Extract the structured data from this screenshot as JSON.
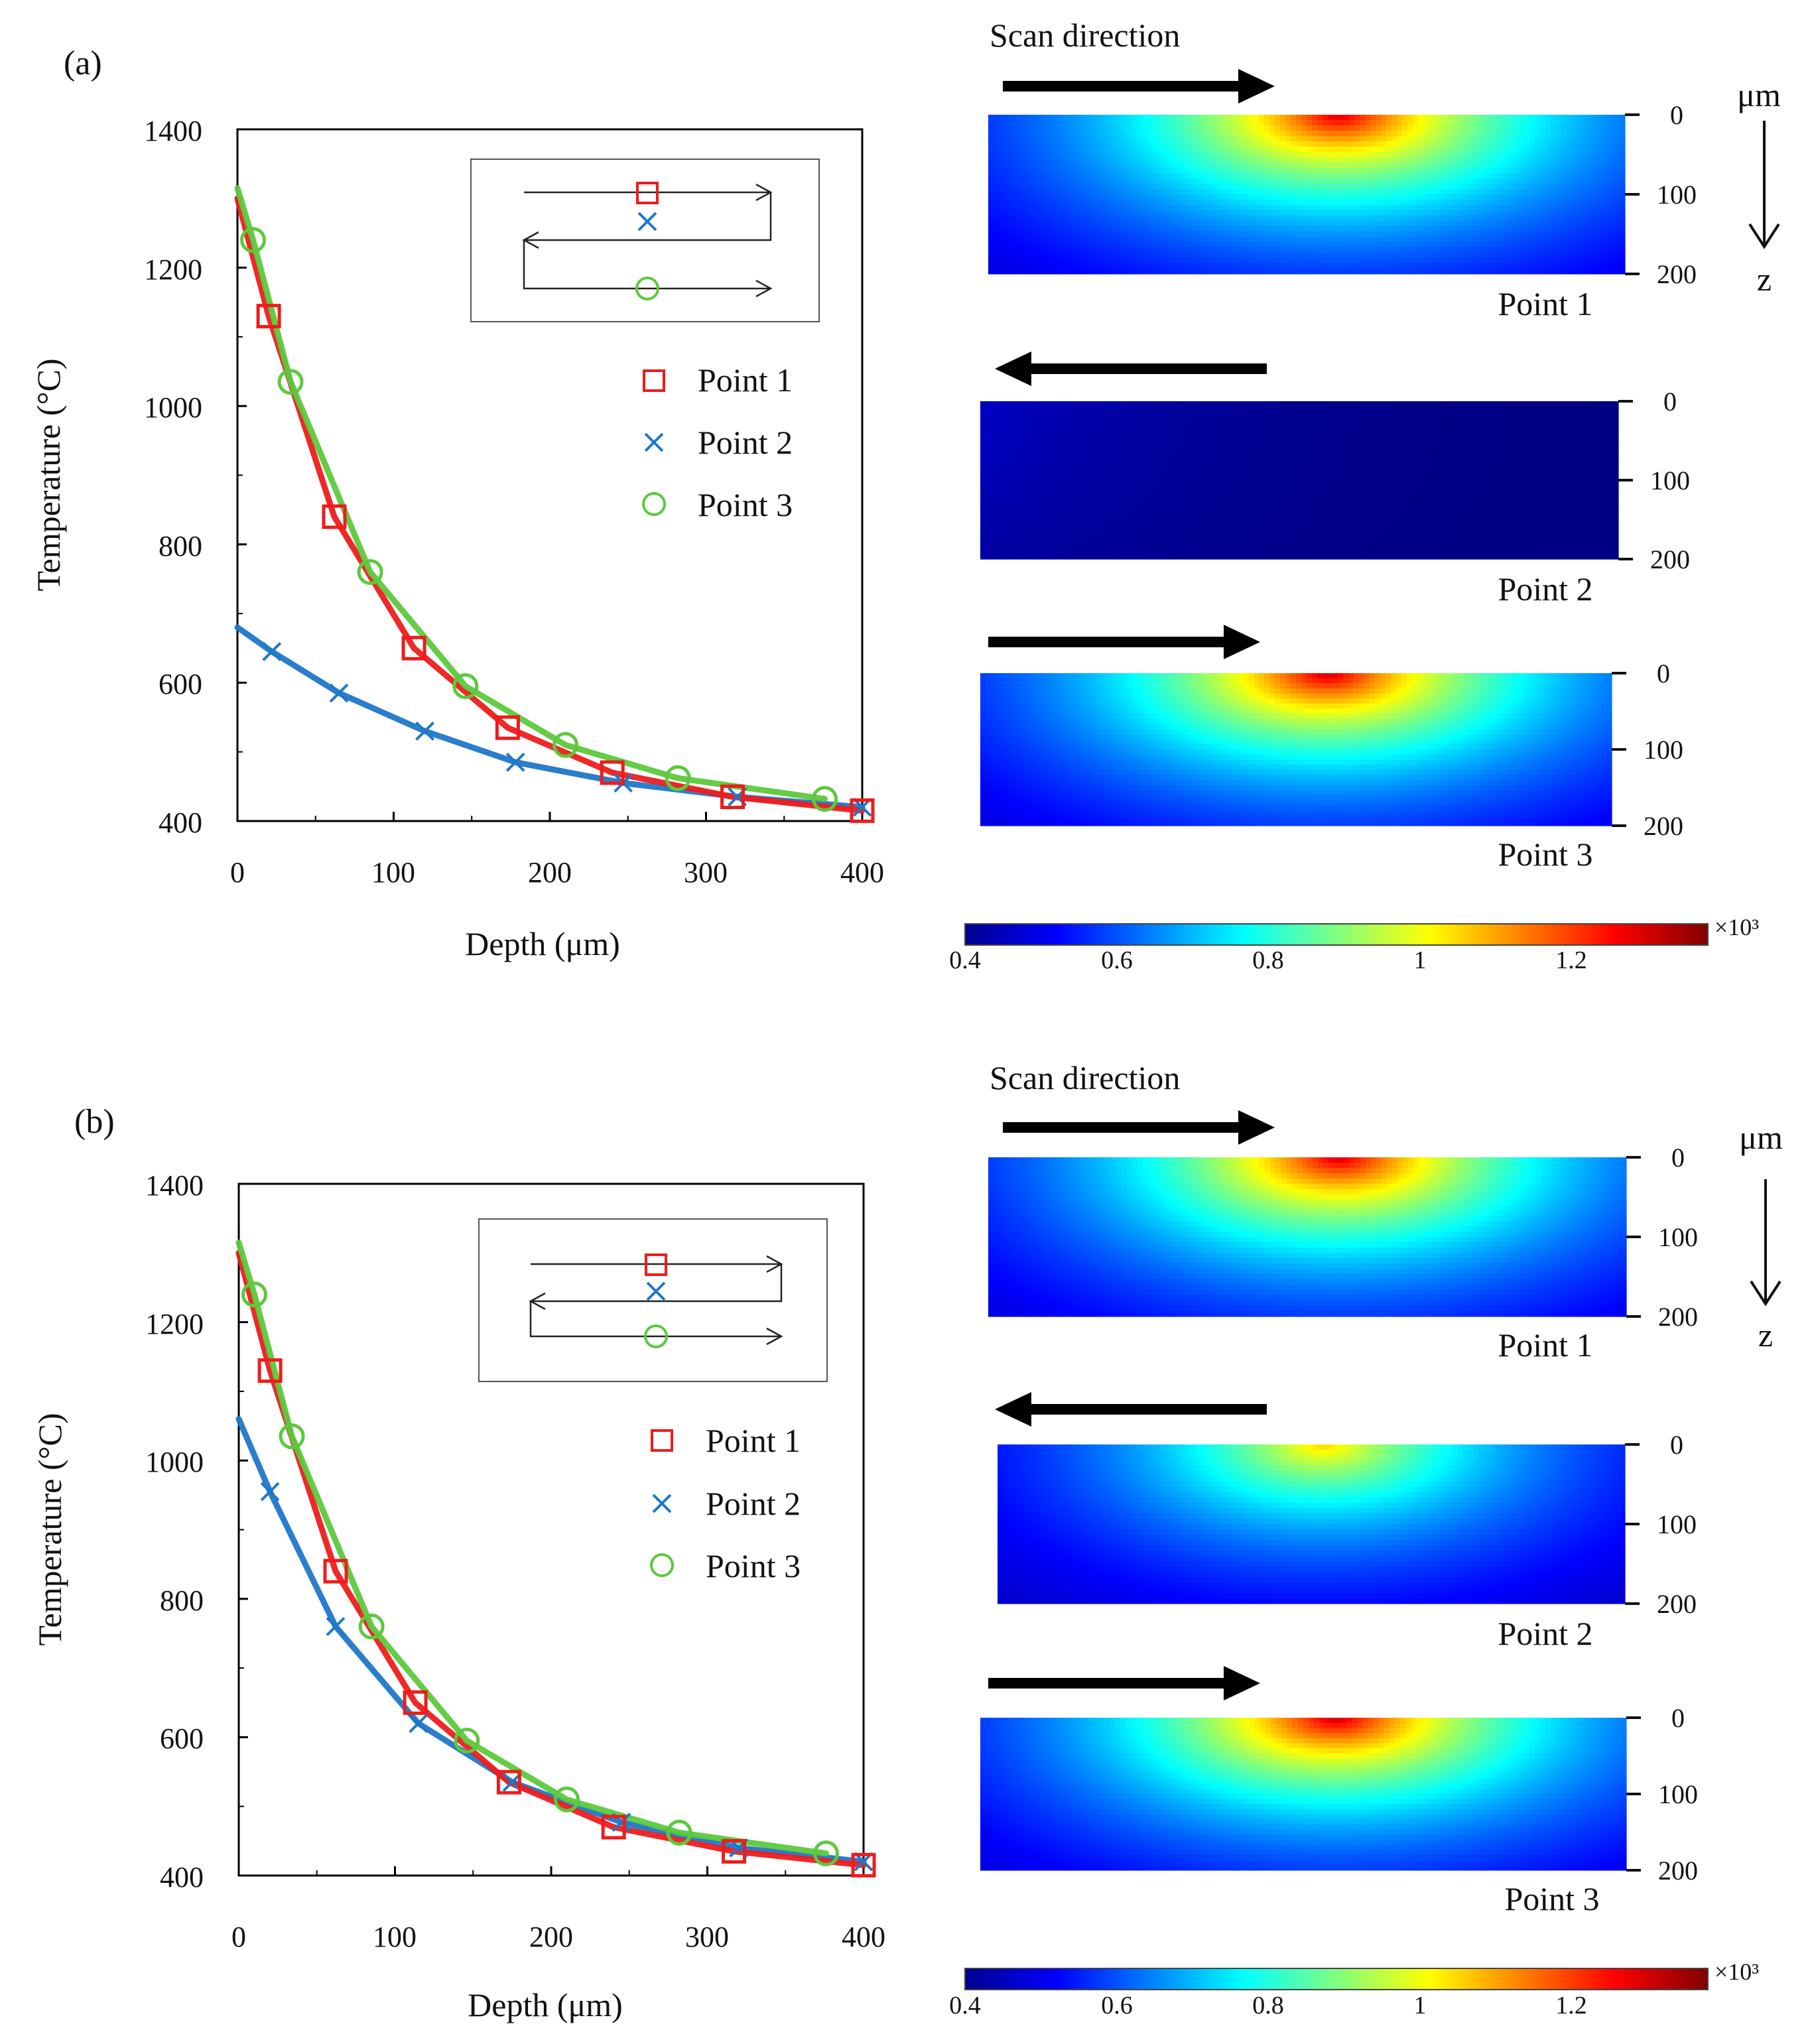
{
  "panels": [
    {
      "label": "(a)",
      "xlabel": "Depth (μm)",
      "ylabel": "Temperature (°C)",
      "xticks": [
        "0",
        "100",
        "200",
        "300",
        "400"
      ],
      "yticks": [
        "400",
        "600",
        "800",
        "1000",
        "1200",
        "1400"
      ],
      "scan_title": "Scan direction",
      "depth_unit": "μm",
      "depth_axis": "z",
      "depth_ticks": [
        "0",
        "100",
        "200"
      ],
      "maps": [
        {
          "label": "Point 1",
          "scan": "right",
          "peak_temp": 1300,
          "peak_pos": 0.55
        },
        {
          "label": "Point 2",
          "scan": "left",
          "peak_temp": 680,
          "peak_pos": -0.5
        },
        {
          "label": "Point 3",
          "scan": "right",
          "peak_temp": 1310,
          "peak_pos": 0.55
        }
      ],
      "colorbar": {
        "ticks": [
          "0.4",
          "0.6",
          "0.8",
          "1",
          "1.2"
        ],
        "exponent": "×10³",
        "min": 400,
        "max": 1380
      }
    },
    {
      "label": "(b)",
      "xlabel": "Depth (μm)",
      "ylabel": "Temperature (°C)",
      "xticks": [
        "0",
        "100",
        "200",
        "300",
        "400"
      ],
      "yticks": [
        "400",
        "600",
        "800",
        "1000",
        "1200",
        "1400"
      ],
      "scan_title": "Scan direction",
      "depth_unit": "μm",
      "depth_axis": "z",
      "depth_ticks": [
        "0",
        "100",
        "200"
      ],
      "maps": [
        {
          "label": "Point 1",
          "scan": "right",
          "peak_temp": 1300,
          "peak_pos": 0.55
        },
        {
          "label": "Point 2",
          "scan": "left",
          "peak_temp": 1060,
          "peak_pos": 0.52
        },
        {
          "label": "Point 3",
          "scan": "right",
          "peak_temp": 1310,
          "peak_pos": 0.55
        }
      ],
      "colorbar": {
        "ticks": [
          "0.4",
          "0.6",
          "0.8",
          "1",
          "1.2"
        ],
        "exponent": "×10³",
        "min": 400,
        "max": 1380
      }
    }
  ],
  "chart_data": [
    {
      "type": "line",
      "panel": "(a)",
      "xlabel": "Depth (μm)",
      "ylabel": "Temperature (°C)",
      "xlim": [
        0,
        400
      ],
      "ylim": [
        400,
        1400
      ],
      "legend": "right",
      "colors": {
        "Point 1": "#ee1c1c",
        "Point 2": "#1f77c8",
        "Point 3": "#5cc93c"
      },
      "series": [
        {
          "name": "Point 1",
          "marker": "square",
          "x": [
            0,
            20,
            62,
            113,
            173,
            240,
            317,
            400
          ],
          "y": [
            1300,
            1130,
            840,
            650,
            535,
            470,
            435,
            415
          ]
        },
        {
          "name": "Point 2",
          "marker": "x",
          "x": [
            0,
            22,
            65,
            120,
            178,
            247,
            320,
            400
          ],
          "y": [
            680,
            645,
            585,
            530,
            485,
            455,
            435,
            420
          ]
        },
        {
          "name": "Point 3",
          "marker": "circle",
          "x": [
            0,
            10,
            34,
            85,
            146,
            210,
            282,
            376
          ],
          "y": [
            1315,
            1240,
            1035,
            760,
            595,
            510,
            462,
            432
          ]
        }
      ]
    },
    {
      "type": "line",
      "panel": "(b)",
      "xlabel": "Depth (μm)",
      "ylabel": "Temperature (°C)",
      "xlim": [
        0,
        400
      ],
      "ylim": [
        400,
        1400
      ],
      "legend": "right",
      "colors": {
        "Point 1": "#ee1c1c",
        "Point 2": "#1f77c8",
        "Point 3": "#5cc93c"
      },
      "series": [
        {
          "name": "Point 1",
          "marker": "square",
          "x": [
            0,
            20,
            62,
            113,
            173,
            240,
            317,
            400
          ],
          "y": [
            1300,
            1130,
            840,
            650,
            535,
            470,
            435,
            415
          ]
        },
        {
          "name": "Point 2",
          "marker": "x",
          "x": [
            0,
            20,
            62,
            115,
            175,
            245,
            320,
            400
          ],
          "y": [
            1060,
            955,
            760,
            620,
            535,
            477,
            440,
            420
          ]
        },
        {
          "name": "Point 3",
          "marker": "circle",
          "x": [
            0,
            10,
            34,
            85,
            146,
            210,
            282,
            376
          ],
          "y": [
            1315,
            1240,
            1035,
            760,
            595,
            510,
            462,
            432
          ]
        }
      ]
    }
  ]
}
